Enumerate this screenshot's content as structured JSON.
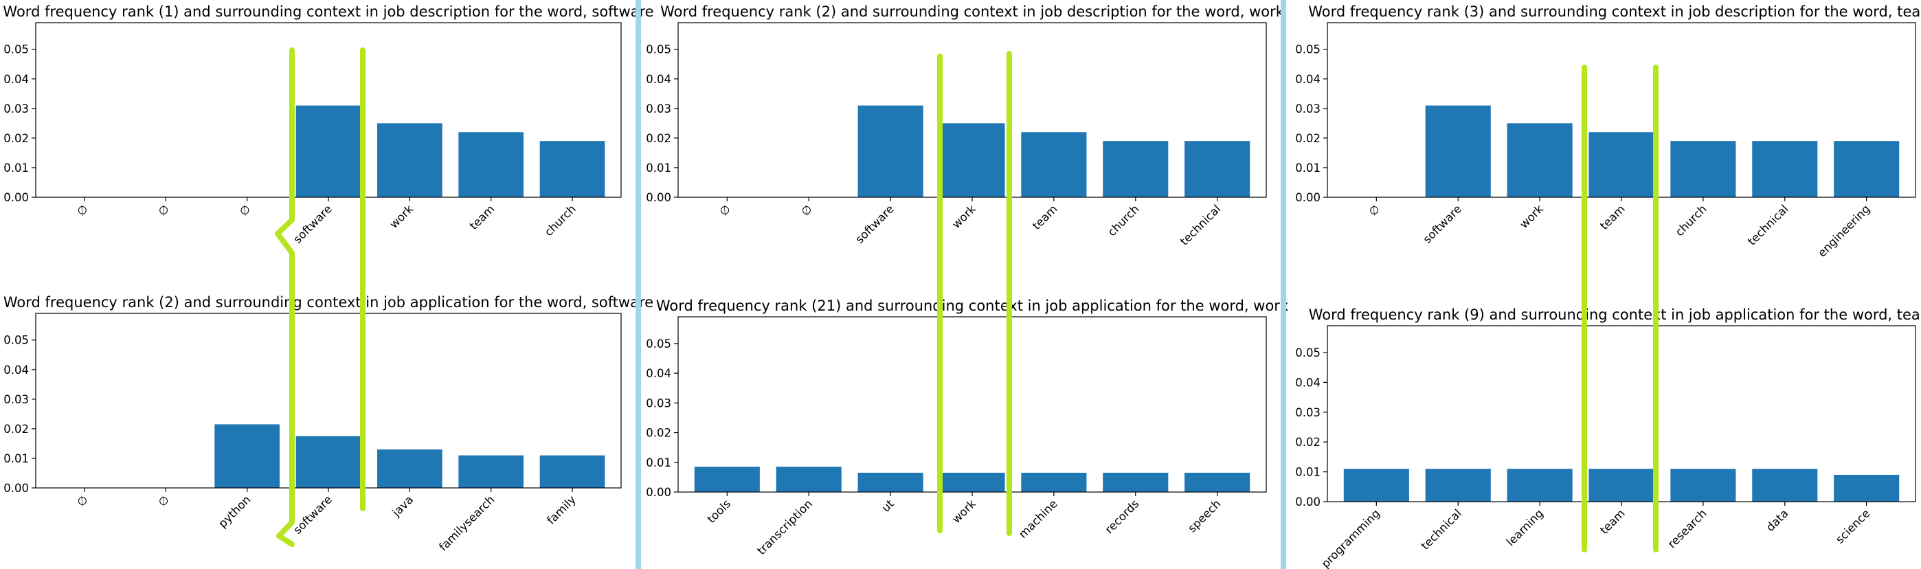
{
  "colors": {
    "bar": "#1f77b4",
    "divider": "#9ed8e6",
    "bracket": "#b5e61d",
    "axis": "#000000"
  },
  "chart_data": [
    {
      "type": "bar",
      "title": "Word frequency rank (1) and surrounding context in job description for the word, software",
      "categories": [
        "∅",
        "∅",
        "∅",
        "software",
        "work",
        "team",
        "church"
      ],
      "values": [
        0,
        0,
        0,
        0.031,
        0.025,
        0.022,
        0.019
      ],
      "ylim": [
        0,
        0.059
      ],
      "yticks": [
        0.0,
        0.01,
        0.02,
        0.03,
        0.04,
        0.05
      ],
      "xlabel": "",
      "ylabel": ""
    },
    {
      "type": "bar",
      "title": "Word frequency rank (2) and surrounding context in job description for the word, work",
      "categories": [
        "∅",
        "∅",
        "software",
        "work",
        "team",
        "church",
        "technical"
      ],
      "values": [
        0,
        0,
        0.031,
        0.025,
        0.022,
        0.019,
        0.019
      ],
      "ylim": [
        0,
        0.059
      ],
      "yticks": [
        0.0,
        0.01,
        0.02,
        0.03,
        0.04,
        0.05
      ],
      "xlabel": "",
      "ylabel": ""
    },
    {
      "type": "bar",
      "title": "Word frequency rank (3) and surrounding context in job description for the word, team",
      "categories": [
        "∅",
        "software",
        "work",
        "team",
        "church",
        "technical",
        "engineering"
      ],
      "values": [
        0,
        0.031,
        0.025,
        0.022,
        0.019,
        0.019,
        0.019
      ],
      "ylim": [
        0,
        0.059
      ],
      "yticks": [
        0.0,
        0.01,
        0.02,
        0.03,
        0.04,
        0.05
      ],
      "xlabel": "",
      "ylabel": ""
    },
    {
      "type": "bar",
      "title": "Word frequency rank (2) and surrounding context in job application for the word, software",
      "categories": [
        "∅",
        "∅",
        "python",
        "software",
        "java",
        "familysearch",
        "family"
      ],
      "values": [
        0,
        0,
        0.0215,
        0.0175,
        0.013,
        0.011,
        0.011
      ],
      "ylim": [
        0,
        0.059
      ],
      "yticks": [
        0.0,
        0.01,
        0.02,
        0.03,
        0.04,
        0.05
      ],
      "xlabel": "",
      "ylabel": ""
    },
    {
      "type": "bar",
      "title": "Word frequency rank (21) and surrounding context in job application for the word, work",
      "categories": [
        "tools",
        "transcription",
        "ut",
        "work",
        "machine",
        "records",
        "speech"
      ],
      "values": [
        0.0085,
        0.0085,
        0.0065,
        0.0065,
        0.0065,
        0.0065,
        0.0065
      ],
      "ylim": [
        0,
        0.059
      ],
      "yticks": [
        0.0,
        0.01,
        0.02,
        0.03,
        0.04,
        0.05
      ],
      "xlabel": "",
      "ylabel": ""
    },
    {
      "type": "bar",
      "title": "Word frequency rank (9) and surrounding context in job application for the word, team",
      "categories": [
        "programming",
        "technical",
        "learning",
        "team",
        "research",
        "data",
        "science"
      ],
      "values": [
        0.011,
        0.011,
        0.011,
        0.011,
        0.011,
        0.011,
        0.009
      ],
      "ylim": [
        0,
        0.059
      ],
      "yticks": [
        0.0,
        0.01,
        0.02,
        0.03,
        0.04,
        0.05
      ],
      "xlabel": "",
      "ylabel": ""
    }
  ]
}
